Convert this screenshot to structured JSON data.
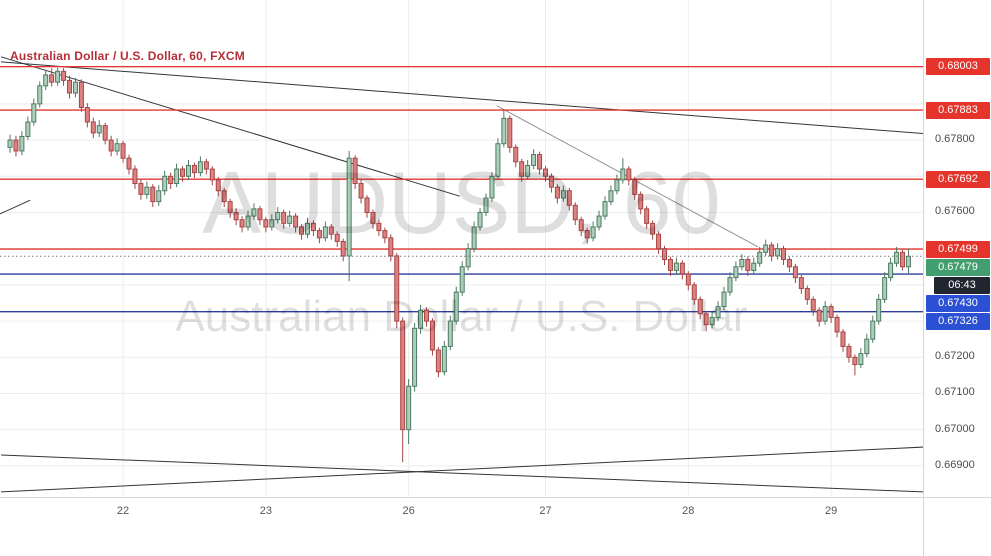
{
  "header": {
    "title": "Australian Dollar / U.S. Dollar, 60, FXCM"
  },
  "watermark": {
    "line1": "AUDUSD, 60",
    "line2": "Australian Dollar / U.S. Dollar"
  },
  "colors": {
    "up_fill": "#abcfba",
    "up_border": "#4d7a62",
    "down_fill": "#de8181",
    "down_border": "#a64545",
    "red": "#e5342c",
    "blue": "#2b50d4",
    "blue_line": "#2c3e9e",
    "green_badge": "#429e6e",
    "countdown_bg": "#21252f",
    "grid": "#ededed",
    "trend_dark": "#30363c",
    "trend_gray": "#8f9396",
    "title": "#b52f3a",
    "axis_text": "#4b4b4b",
    "time_text": "#555555",
    "watermark": "rgba(0,0,0,0.13)",
    "current_dotted": "#777777"
  },
  "price_axis": {
    "plain_labels": [
      {
        "label": "0.67800",
        "price": 0.678
      },
      {
        "label": "0.67600",
        "price": 0.676
      },
      {
        "label": "0.67200",
        "price": 0.672
      },
      {
        "label": "0.67100",
        "price": 0.671
      },
      {
        "label": "0.67000",
        "price": 0.67
      },
      {
        "label": "0.66900",
        "price": 0.669
      }
    ],
    "badges": [
      {
        "label": "0.68003",
        "price": 0.68003,
        "kind": "red"
      },
      {
        "label": "0.67883",
        "price": 0.67883,
        "kind": "red"
      },
      {
        "label": "0.67692",
        "price": 0.67692,
        "kind": "red"
      },
      {
        "label": "0.67499",
        "price": 0.67499,
        "kind": "red"
      },
      {
        "label": "0.67479",
        "price": 0.67479,
        "kind": "green"
      },
      {
        "label": "06:43",
        "price": 0.67479,
        "kind": "countdown"
      },
      {
        "label": "0.67430",
        "price": 0.6743,
        "kind": "blue"
      },
      {
        "label": "0.67326",
        "price": 0.67326,
        "kind": "blue"
      }
    ]
  },
  "time_axis": {
    "labels": [
      {
        "label": "22",
        "bar": 19
      },
      {
        "label": "23",
        "bar": 43
      },
      {
        "label": "26",
        "bar": 67
      },
      {
        "label": "27",
        "bar": 90
      },
      {
        "label": "28",
        "bar": 114
      },
      {
        "label": "29",
        "bar": 138
      }
    ]
  },
  "levels": [
    {
      "price": 0.68003,
      "kind": "red"
    },
    {
      "price": 0.67883,
      "kind": "red"
    },
    {
      "price": 0.67692,
      "kind": "red"
    },
    {
      "price": 0.67499,
      "kind": "red"
    },
    {
      "price": 0.6743,
      "kind": "blue"
    },
    {
      "price": 0.67326,
      "kind": "blue"
    }
  ],
  "current_price": {
    "price": 0.67479,
    "label": "0.67479",
    "countdown": "06:43"
  },
  "trendlines": [
    {
      "x1_bar": -1.5,
      "price1": 0.6803,
      "x2_bar": 75.6,
      "price2": 0.67645,
      "shade": "dark"
    },
    {
      "x1_bar": -1.5,
      "price1": 0.68016,
      "x2_bar": 153.5,
      "price2": 0.67818,
      "shade": "dark"
    },
    {
      "x1_bar": 81.8,
      "price1": 0.67895,
      "x2_bar": 125.7,
      "price2": 0.67505,
      "shade": "gray"
    },
    {
      "x1_bar": -1.5,
      "price1": 0.6693,
      "x2_bar": 153.5,
      "price2": 0.66828,
      "shade": "dark"
    },
    {
      "x1_bar": -1.5,
      "price1": 0.66828,
      "x2_bar": 153.5,
      "price2": 0.66952,
      "shade": "dark"
    },
    {
      "x1_bar": -1.7,
      "price1": 0.67596,
      "x2_bar": 3.4,
      "price2": 0.67634,
      "shade": "dark"
    }
  ],
  "chart_data": {
    "type": "candlestick",
    "title": "Australian Dollar / U.S. Dollar, 60, FXCM",
    "symbol": "AUDUSD",
    "interval": "60",
    "provider": "FXCM",
    "ylim": [
      0.66814,
      0.68187
    ],
    "x_day_labels": [
      "22",
      "23",
      "26",
      "27",
      "28",
      "29"
    ],
    "last_price": 0.67479,
    "bar_close_countdown": "06:43",
    "levels_red": [
      0.68003,
      0.67883,
      0.67692,
      0.67499
    ],
    "levels_blue": [
      0.6743,
      0.67326
    ],
    "candles": [
      [
        0.6778,
        0.67815,
        0.67765,
        0.678
      ],
      [
        0.678,
        0.67812,
        0.67755,
        0.6777
      ],
      [
        0.6777,
        0.67825,
        0.67758,
        0.6781
      ],
      [
        0.6781,
        0.67865,
        0.678,
        0.6785
      ],
      [
        0.6785,
        0.67915,
        0.6784,
        0.679
      ],
      [
        0.679,
        0.67962,
        0.6789,
        0.6795
      ],
      [
        0.6795,
        0.67995,
        0.67938,
        0.6798
      ],
      [
        0.6798,
        0.67998,
        0.67948,
        0.6796
      ],
      [
        0.6796,
        0.68,
        0.6795,
        0.6799
      ],
      [
        0.6799,
        0.67999,
        0.6795,
        0.67965
      ],
      [
        0.67965,
        0.67978,
        0.67915,
        0.6793
      ],
      [
        0.6793,
        0.67972,
        0.67918,
        0.6796
      ],
      [
        0.6796,
        0.67968,
        0.67878,
        0.6789
      ],
      [
        0.6789,
        0.67902,
        0.67835,
        0.6785
      ],
      [
        0.6785,
        0.67862,
        0.67805,
        0.6782
      ],
      [
        0.6782,
        0.67855,
        0.67808,
        0.6784
      ],
      [
        0.6784,
        0.67848,
        0.67788,
        0.678
      ],
      [
        0.678,
        0.67812,
        0.67755,
        0.6777
      ],
      [
        0.6777,
        0.67805,
        0.67758,
        0.6779
      ],
      [
        0.6779,
        0.67798,
        0.67738,
        0.6775
      ],
      [
        0.6775,
        0.6776,
        0.67705,
        0.6772
      ],
      [
        0.6772,
        0.6773,
        0.67665,
        0.6768
      ],
      [
        0.6768,
        0.67692,
        0.67635,
        0.6765
      ],
      [
        0.6765,
        0.67685,
        0.67638,
        0.6767
      ],
      [
        0.6767,
        0.67678,
        0.67615,
        0.6763
      ],
      [
        0.6763,
        0.67675,
        0.67618,
        0.6766
      ],
      [
        0.6766,
        0.67715,
        0.67648,
        0.677
      ],
      [
        0.677,
        0.6771,
        0.67665,
        0.6768
      ],
      [
        0.6768,
        0.67735,
        0.6767,
        0.6772
      ],
      [
        0.6772,
        0.67728,
        0.67685,
        0.677
      ],
      [
        0.677,
        0.67745,
        0.6769,
        0.6773
      ],
      [
        0.6773,
        0.67738,
        0.67695,
        0.6771
      ],
      [
        0.6771,
        0.67755,
        0.677,
        0.6774
      ],
      [
        0.6774,
        0.67748,
        0.67705,
        0.6772
      ],
      [
        0.6772,
        0.67728,
        0.67675,
        0.6769
      ],
      [
        0.6769,
        0.67698,
        0.67645,
        0.6766
      ],
      [
        0.6766,
        0.67668,
        0.67615,
        0.6763
      ],
      [
        0.6763,
        0.67638,
        0.67585,
        0.676
      ],
      [
        0.676,
        0.67612,
        0.67565,
        0.6758
      ],
      [
        0.6758,
        0.6759,
        0.67545,
        0.6756
      ],
      [
        0.6756,
        0.67605,
        0.6755,
        0.6759
      ],
      [
        0.6759,
        0.67625,
        0.6758,
        0.6761
      ],
      [
        0.6761,
        0.67618,
        0.67565,
        0.6758
      ],
      [
        0.6758,
        0.67588,
        0.67545,
        0.6756
      ],
      [
        0.6756,
        0.67595,
        0.6755,
        0.6758
      ],
      [
        0.6758,
        0.67615,
        0.6757,
        0.676
      ],
      [
        0.676,
        0.67608,
        0.67555,
        0.6757
      ],
      [
        0.6757,
        0.67605,
        0.6756,
        0.6759
      ],
      [
        0.6759,
        0.67598,
        0.67545,
        0.6756
      ],
      [
        0.6756,
        0.67568,
        0.67525,
        0.6754
      ],
      [
        0.6754,
        0.67585,
        0.6753,
        0.6757
      ],
      [
        0.6757,
        0.67578,
        0.67535,
        0.6755
      ],
      [
        0.6755,
        0.67558,
        0.67515,
        0.6753
      ],
      [
        0.6753,
        0.67575,
        0.6752,
        0.6756
      ],
      [
        0.6756,
        0.67568,
        0.67525,
        0.6754
      ],
      [
        0.6754,
        0.67548,
        0.67505,
        0.6752
      ],
      [
        0.6752,
        0.67528,
        0.67465,
        0.6748
      ],
      [
        0.6748,
        0.6777,
        0.6741,
        0.6775
      ],
      [
        0.6775,
        0.67758,
        0.67665,
        0.6768
      ],
      [
        0.6768,
        0.6769,
        0.67625,
        0.6764
      ],
      [
        0.6764,
        0.67648,
        0.67585,
        0.676
      ],
      [
        0.676,
        0.67608,
        0.67555,
        0.6757
      ],
      [
        0.6757,
        0.6758,
        0.67535,
        0.6755
      ],
      [
        0.6755,
        0.67558,
        0.67515,
        0.6753
      ],
      [
        0.6753,
        0.6754,
        0.67465,
        0.6748
      ],
      [
        0.6748,
        0.67488,
        0.6728,
        0.673
      ],
      [
        0.673,
        0.6731,
        0.6691,
        0.67
      ],
      [
        0.67,
        0.6714,
        0.6696,
        0.6712
      ],
      [
        0.6712,
        0.67295,
        0.67105,
        0.6728
      ],
      [
        0.6728,
        0.67345,
        0.67265,
        0.6733
      ],
      [
        0.6733,
        0.67338,
        0.67285,
        0.673
      ],
      [
        0.673,
        0.67308,
        0.67205,
        0.6722
      ],
      [
        0.6722,
        0.67228,
        0.67145,
        0.6716
      ],
      [
        0.6716,
        0.67245,
        0.6715,
        0.6723
      ],
      [
        0.6723,
        0.67315,
        0.6722,
        0.673
      ],
      [
        0.673,
        0.67395,
        0.6729,
        0.6738
      ],
      [
        0.6738,
        0.67465,
        0.6737,
        0.6745
      ],
      [
        0.6745,
        0.67515,
        0.6744,
        0.675
      ],
      [
        0.675,
        0.67575,
        0.6749,
        0.6756
      ],
      [
        0.6756,
        0.67612,
        0.6755,
        0.676
      ],
      [
        0.676,
        0.67652,
        0.6759,
        0.6764
      ],
      [
        0.6764,
        0.67712,
        0.6763,
        0.677
      ],
      [
        0.677,
        0.67805,
        0.6769,
        0.6779
      ],
      [
        0.6779,
        0.67885,
        0.6778,
        0.6786
      ],
      [
        0.6786,
        0.67868,
        0.67765,
        0.6778
      ],
      [
        0.6778,
        0.67788,
        0.67725,
        0.6774
      ],
      [
        0.6774,
        0.67748,
        0.67685,
        0.677
      ],
      [
        0.677,
        0.67745,
        0.6769,
        0.6773
      ],
      [
        0.6773,
        0.67775,
        0.6772,
        0.6776
      ],
      [
        0.6776,
        0.67768,
        0.67705,
        0.6772
      ],
      [
        0.6772,
        0.67728,
        0.67685,
        0.677
      ],
      [
        0.677,
        0.67708,
        0.67655,
        0.6767
      ],
      [
        0.6767,
        0.67678,
        0.67625,
        0.6764
      ],
      [
        0.6764,
        0.67675,
        0.6763,
        0.6766
      ],
      [
        0.6766,
        0.67668,
        0.67605,
        0.6762
      ],
      [
        0.6762,
        0.67628,
        0.67565,
        0.6758
      ],
      [
        0.6758,
        0.67588,
        0.67535,
        0.6755
      ],
      [
        0.6755,
        0.67558,
        0.67515,
        0.6753
      ],
      [
        0.6753,
        0.67575,
        0.6752,
        0.6756
      ],
      [
        0.6756,
        0.67605,
        0.6755,
        0.6759
      ],
      [
        0.6759,
        0.67645,
        0.6758,
        0.6763
      ],
      [
        0.6763,
        0.67675,
        0.6762,
        0.6766
      ],
      [
        0.6766,
        0.67705,
        0.6765,
        0.6769
      ],
      [
        0.6769,
        0.6775,
        0.6768,
        0.6772
      ],
      [
        0.6772,
        0.67728,
        0.67675,
        0.6769
      ],
      [
        0.6769,
        0.67698,
        0.67635,
        0.6765
      ],
      [
        0.6765,
        0.67658,
        0.67595,
        0.6761
      ],
      [
        0.6761,
        0.67618,
        0.67555,
        0.6757
      ],
      [
        0.6757,
        0.67578,
        0.67525,
        0.6754
      ],
      [
        0.6754,
        0.67548,
        0.67485,
        0.675
      ],
      [
        0.675,
        0.67508,
        0.67455,
        0.6747
      ],
      [
        0.6747,
        0.67478,
        0.67425,
        0.6744
      ],
      [
        0.6744,
        0.67475,
        0.6743,
        0.6746
      ],
      [
        0.6746,
        0.67468,
        0.67415,
        0.6743
      ],
      [
        0.6743,
        0.67438,
        0.67385,
        0.674
      ],
      [
        0.674,
        0.67408,
        0.67345,
        0.6736
      ],
      [
        0.6736,
        0.67368,
        0.67305,
        0.6732
      ],
      [
        0.6732,
        0.67328,
        0.67272,
        0.6729
      ],
      [
        0.6729,
        0.67325,
        0.6728,
        0.6731
      ],
      [
        0.6731,
        0.67355,
        0.673,
        0.6734
      ],
      [
        0.6734,
        0.67395,
        0.6733,
        0.6738
      ],
      [
        0.6738,
        0.67435,
        0.6737,
        0.6742
      ],
      [
        0.6742,
        0.67465,
        0.6741,
        0.6745
      ],
      [
        0.6745,
        0.67485,
        0.6744,
        0.6747
      ],
      [
        0.6747,
        0.67478,
        0.67425,
        0.6744
      ],
      [
        0.6744,
        0.67475,
        0.6743,
        0.6746
      ],
      [
        0.6746,
        0.67505,
        0.6745,
        0.6749
      ],
      [
        0.6749,
        0.67525,
        0.6748,
        0.6751
      ],
      [
        0.6751,
        0.67518,
        0.67465,
        0.6748
      ],
      [
        0.6748,
        0.67515,
        0.6747,
        0.675
      ],
      [
        0.675,
        0.67508,
        0.67455,
        0.6747
      ],
      [
        0.6747,
        0.67478,
        0.67435,
        0.6745
      ],
      [
        0.6745,
        0.67458,
        0.67405,
        0.6742
      ],
      [
        0.6742,
        0.67428,
        0.67375,
        0.6739
      ],
      [
        0.6739,
        0.67398,
        0.67345,
        0.6736
      ],
      [
        0.6736,
        0.67368,
        0.67315,
        0.6733
      ],
      [
        0.6733,
        0.67338,
        0.67285,
        0.673
      ],
      [
        0.673,
        0.67355,
        0.6729,
        0.6734
      ],
      [
        0.6734,
        0.67348,
        0.67295,
        0.6731
      ],
      [
        0.6731,
        0.67318,
        0.67255,
        0.6727
      ],
      [
        0.6727,
        0.67278,
        0.67215,
        0.6723
      ],
      [
        0.6723,
        0.67238,
        0.67185,
        0.672
      ],
      [
        0.672,
        0.67208,
        0.6715,
        0.6718
      ],
      [
        0.6718,
        0.67225,
        0.6717,
        0.6721
      ],
      [
        0.6721,
        0.67265,
        0.672,
        0.6725
      ],
      [
        0.6725,
        0.67315,
        0.6724,
        0.673
      ],
      [
        0.673,
        0.67375,
        0.6729,
        0.6736
      ],
      [
        0.6736,
        0.67435,
        0.6735,
        0.6742
      ],
      [
        0.6742,
        0.67475,
        0.6741,
        0.6746
      ],
      [
        0.6746,
        0.67505,
        0.6745,
        0.6749
      ],
      [
        0.6749,
        0.67498,
        0.6744,
        0.6745
      ],
      [
        0.6745,
        0.675,
        0.6743,
        0.67479
      ]
    ]
  }
}
